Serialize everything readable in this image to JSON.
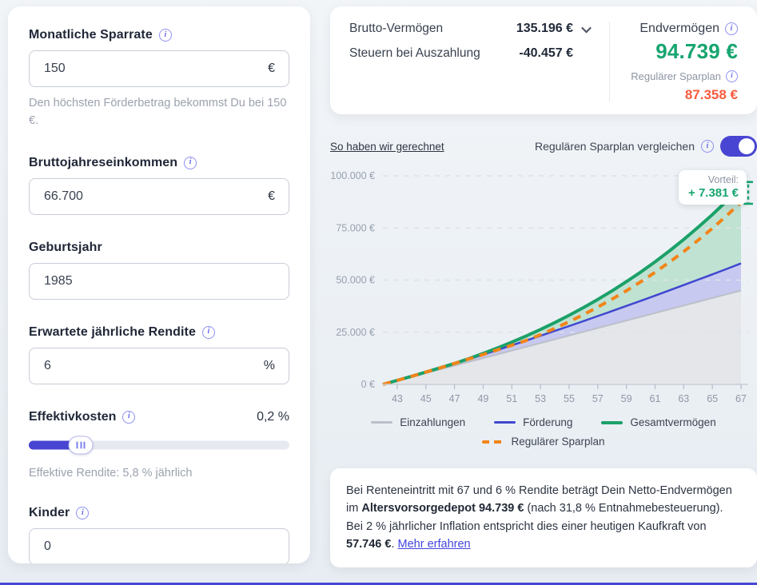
{
  "icons": {
    "info": "i"
  },
  "colors": {
    "brand": "#4845d2",
    "green": "#17a56f",
    "orange_value": "#f75b3d",
    "orange_line": "#f28418",
    "blue_line": "#4047cf",
    "gray_line": "#bcc0c9"
  },
  "left_panel": {
    "sparrate": {
      "label": "Monatliche Sparrate",
      "value": "150",
      "unit": "€",
      "help": "Den höchsten Förderbetrag bekommst Du bei 150 €."
    },
    "einkommen": {
      "label": "Bruttojahreseinkommen",
      "value": "66.700",
      "unit": "€"
    },
    "geburtsjahr": {
      "label": "Geburtsjahr",
      "value": "1985"
    },
    "rendite": {
      "label": "Erwartete jährliche Rendite",
      "value": "6",
      "unit": "%"
    },
    "effektivkosten": {
      "label": "Effektivkosten",
      "value_display": "0,2 %",
      "slider_percent": 20,
      "help": "Effektive Rendite: 5,8 % jährlich"
    },
    "kinder": {
      "label": "Kinder",
      "value": "0"
    }
  },
  "summary": {
    "brutto_label": "Brutto-Vermögen",
    "brutto_value": "135.196 €",
    "steuern_label": "Steuern bei Auszahlung",
    "steuern_value": "-40.457 €",
    "endvermoegen_label": "Endvermögen",
    "endvermoegen_value": "94.739 €",
    "regulaer_label": "Regulärer Sparplan",
    "regulaer_value": "87.358 €"
  },
  "controls": {
    "how_link": "So haben wir gerechnet",
    "compare_label": "Regulären Sparplan vergleichen",
    "toggle_on": true
  },
  "annotation": {
    "label": "Vorteil:",
    "value": "+ 7.381 €"
  },
  "chart_data": {
    "type": "area",
    "x": [
      42,
      43,
      44,
      45,
      46,
      47,
      48,
      49,
      50,
      51,
      52,
      53,
      54,
      55,
      56,
      57,
      58,
      59,
      60,
      61,
      62,
      63,
      64,
      65,
      66,
      67
    ],
    "x_ticks": [
      43,
      45,
      47,
      49,
      51,
      53,
      55,
      57,
      59,
      61,
      63,
      65,
      67
    ],
    "y_ticks": [
      {
        "label": "0 €",
        "value": 0
      },
      {
        "label": "25.000 €",
        "value": 25000
      },
      {
        "label": "50.000 €",
        "value": 50000
      },
      {
        "label": "75.000 €",
        "value": 75000
      },
      {
        "label": "100.000 €",
        "value": 100000
      }
    ],
    "ylim": [
      0,
      100000
    ],
    "grid": "dashed",
    "legend_position": "bottom",
    "series": [
      {
        "name": "Einzahlungen",
        "color": "#bcc0c9",
        "fill": "#e4e6ea",
        "dash": false,
        "width": 2,
        "values": [
          0,
          1800,
          3600,
          5400,
          7200,
          9000,
          10800,
          12600,
          14400,
          16200,
          18000,
          19800,
          21600,
          23400,
          25200,
          27000,
          28800,
          30600,
          32400,
          34200,
          36000,
          37800,
          39600,
          41400,
          43200,
          45000
        ]
      },
      {
        "name": "Förderung",
        "color": "#4047cf",
        "fill": "#c7c9f0",
        "dash": false,
        "width": 2.5,
        "values": [
          0,
          1875,
          3828,
          5837,
          7893,
          9990,
          12125,
          14295,
          16501,
          18735,
          21000,
          23294,
          25617,
          27967,
          30342,
          32741,
          35165,
          37613,
          40086,
          42581,
          45097,
          47635,
          50196,
          52777,
          55378,
          58000
        ]
      },
      {
        "name": "Gesamtvermögen",
        "color": "#1ba169",
        "fill": "#bfe2d2",
        "dash": false,
        "width": 4,
        "values": [
          0,
          1935,
          3888,
          5897,
          7953,
          10050,
          12332,
          14824,
          17461,
          20251,
          23202,
          26325,
          29628,
          33124,
          36822,
          40734,
          44874,
          49254,
          53888,
          58790,
          63977,
          69464,
          75270,
          81413,
          87913,
          94739
        ]
      },
      {
        "name": "Regulärer Sparplan",
        "color": "#f28418",
        "dash": true,
        "width": 4,
        "values": [
          0,
          1925,
          3878,
          5887,
          7943,
          10040,
          12175,
          14345,
          16551,
          18785,
          21050,
          23839,
          26862,
          30066,
          33462,
          37062,
          40878,
          44923,
          49211,
          53755,
          58573,
          63680,
          69093,
          74831,
          80913,
          87358
        ]
      }
    ]
  },
  "footer": {
    "text_1": "Bei Renteneintritt mit 67 und 6 % Rendite beträgt Dein Netto-Endvermögen im ",
    "bold_1": "Altersvorsorgedepot 94.739 €",
    "text_2": " (nach 31,8 % Entnahmebesteuerung). Bei 2 % jährlicher Inflation entspricht dies einer heutigen Kaufkraft von ",
    "bold_2": "57.746 €",
    "text_3": ".  ",
    "link": "Mehr erfahren"
  }
}
